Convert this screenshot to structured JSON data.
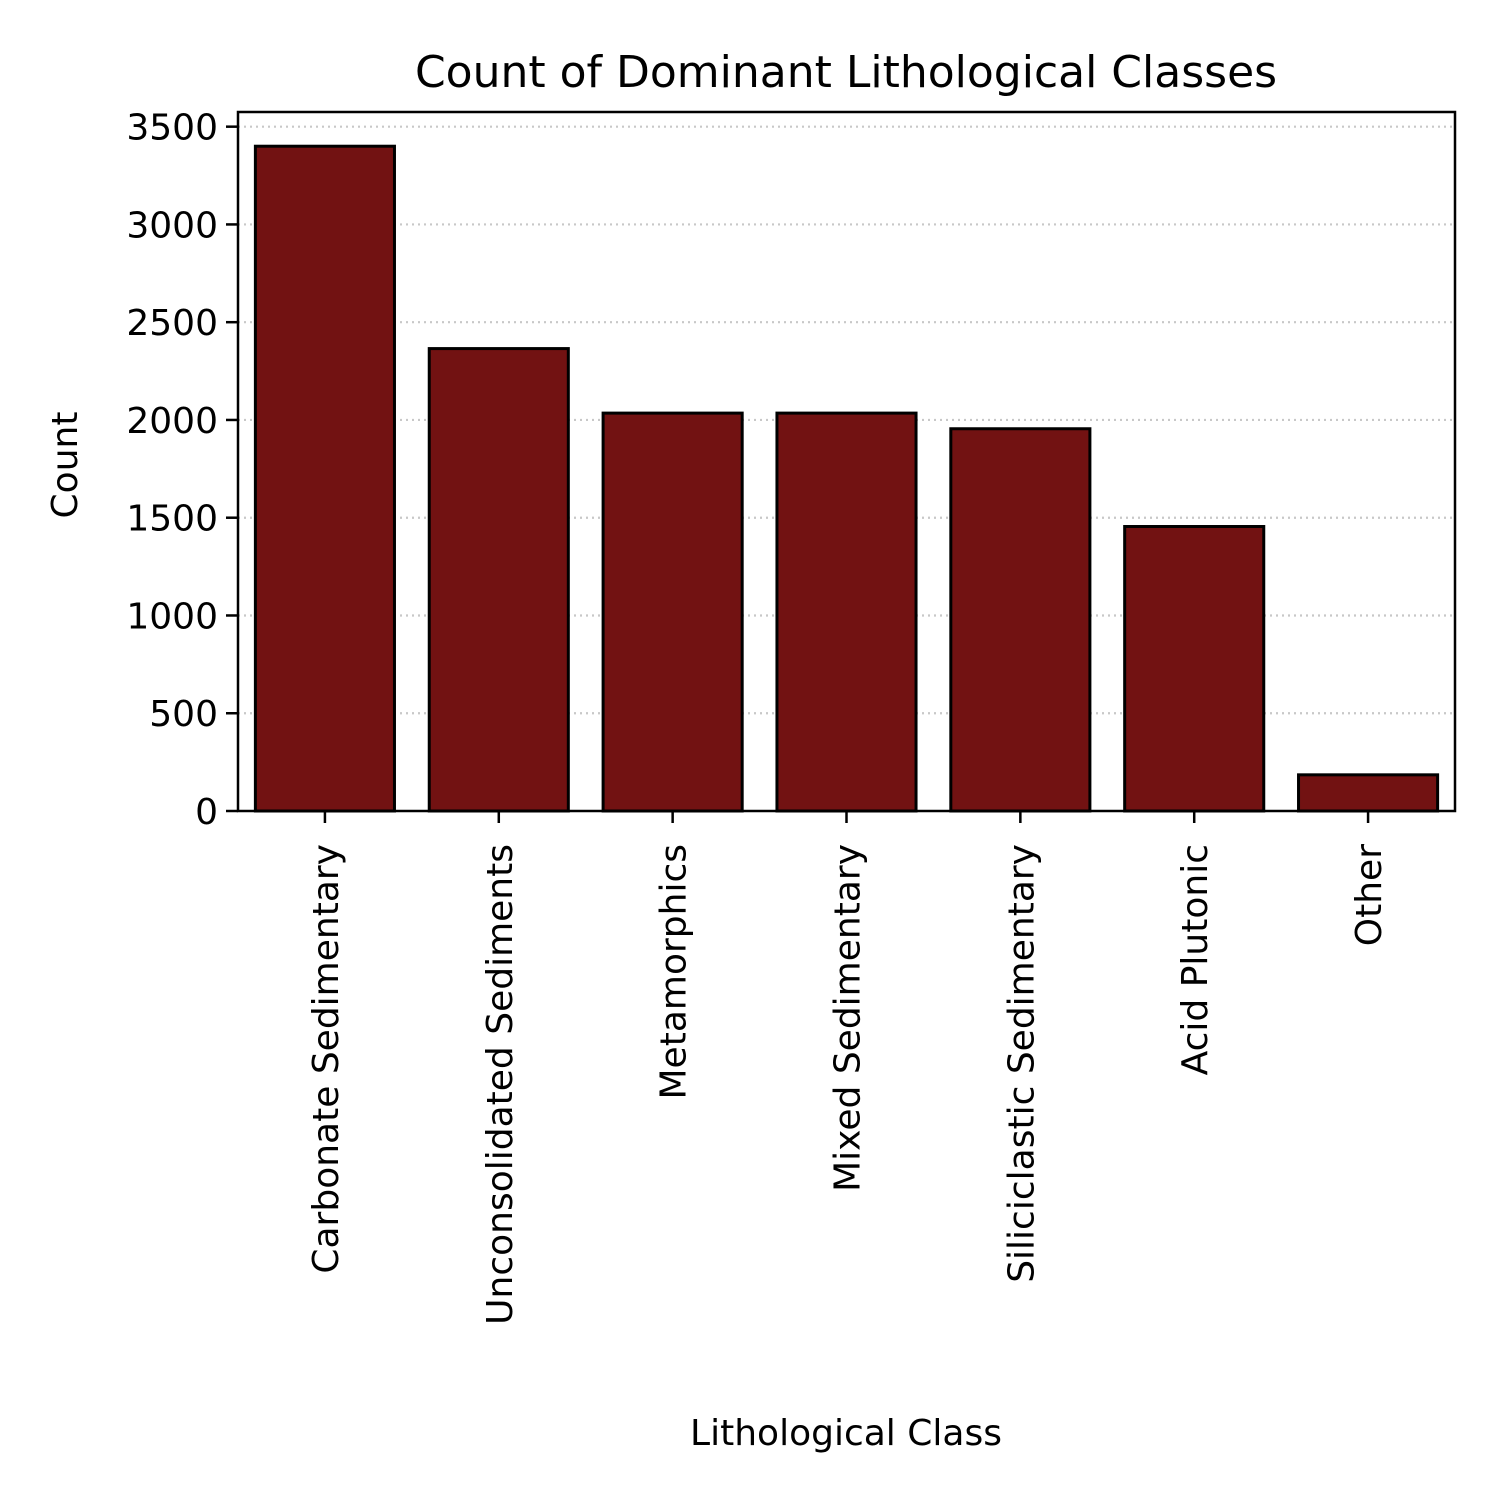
{
  "chart_data": {
    "type": "bar",
    "title": "Count of Dominant Lithological Classes",
    "xlabel": "Lithological Class",
    "ylabel": "Count",
    "categories": [
      "Carbonate Sedimentary",
      "Unconsolidated Sediments",
      "Metamorphics",
      "Mixed Sedimentary",
      "Siliciclastic Sedimentary",
      "Acid Plutonic",
      "Other"
    ],
    "values": [
      3400,
      2365,
      2035,
      2035,
      1955,
      1455,
      185
    ],
    "ylim": [
      0,
      3575
    ],
    "yticks": [
      0,
      500,
      1000,
      1500,
      2000,
      2500,
      3000,
      3500
    ],
    "grid": "y-dotted",
    "legend": "none",
    "colors": {
      "bar_fill": "#721212",
      "bar_edge": "#000000",
      "grid": "#c8c8c8",
      "axis": "#000000"
    }
  }
}
